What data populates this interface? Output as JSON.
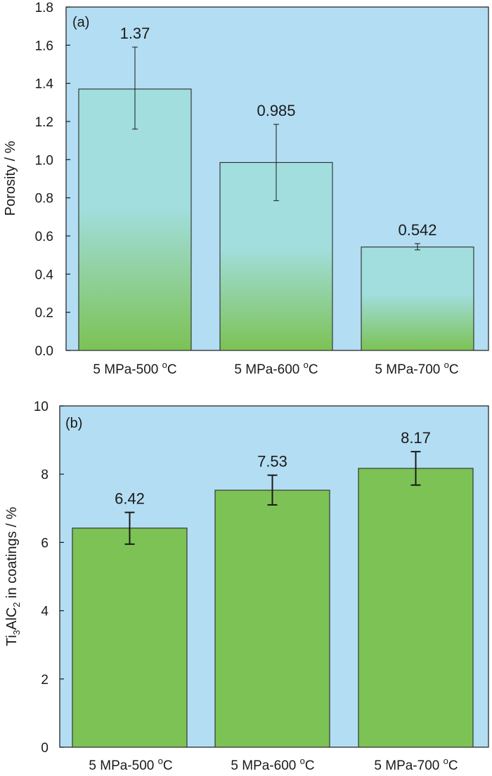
{
  "colors": {
    "plot_background": "#b3ddf2",
    "bar_fill": "#7cc254",
    "bar_gradient_top": "#a2dede",
    "bar_stroke": "#2b2b2b",
    "axis": "#1a1a1a"
  },
  "chart_data": [
    {
      "type": "bar",
      "panel_label": "(a)",
      "categories": [
        {
          "base": "5 MPa-500 ",
          "sup": "o",
          "unit": "C"
        },
        {
          "base": "5 MPa-600 ",
          "sup": "o",
          "unit": "C"
        },
        {
          "base": "5 MPa-700 ",
          "sup": "o",
          "unit": "C"
        }
      ],
      "values": [
        1.37,
        0.985,
        0.542
      ],
      "value_labels": [
        "1.37",
        "0.985",
        "0.542"
      ],
      "error_low": [
        1.16,
        0.785,
        0.527
      ],
      "error_high": [
        1.59,
        1.185,
        0.56
      ],
      "ylabel": "Porosity / %",
      "ylim": [
        0,
        1.8
      ],
      "yticks": [
        "0.0",
        "0.2",
        "0.4",
        "0.6",
        "0.8",
        "1.0",
        "1.2",
        "1.4",
        "1.6",
        "1.8"
      ],
      "bar_style": "gradient",
      "error_bar_style": "thin",
      "grid": false,
      "legend": "none"
    },
    {
      "type": "bar",
      "panel_label": "(b)",
      "categories": [
        {
          "base": "5 MPa-500 ",
          "sup": "o",
          "unit": "C"
        },
        {
          "base": "5 MPa-600 ",
          "sup": "o",
          "unit": "C"
        },
        {
          "base": "5 MPa-700 ",
          "sup": "o",
          "unit": "C"
        }
      ],
      "values": [
        6.42,
        7.53,
        8.17
      ],
      "value_labels": [
        "6.42",
        "7.53",
        "8.17"
      ],
      "error_low": [
        5.95,
        7.1,
        7.68
      ],
      "error_high": [
        6.88,
        7.97,
        8.66
      ],
      "ylabel": {
        "p1": "Ti",
        "s1": "3",
        "p2": "AlC",
        "s2": "2",
        "p3": " in coatings / %"
      },
      "ylim": [
        0,
        10
      ],
      "yticks": [
        "0",
        "2",
        "4",
        "6",
        "8",
        "10"
      ],
      "bar_style": "solid",
      "error_bar_style": "thick",
      "grid": false,
      "legend": "none"
    }
  ]
}
